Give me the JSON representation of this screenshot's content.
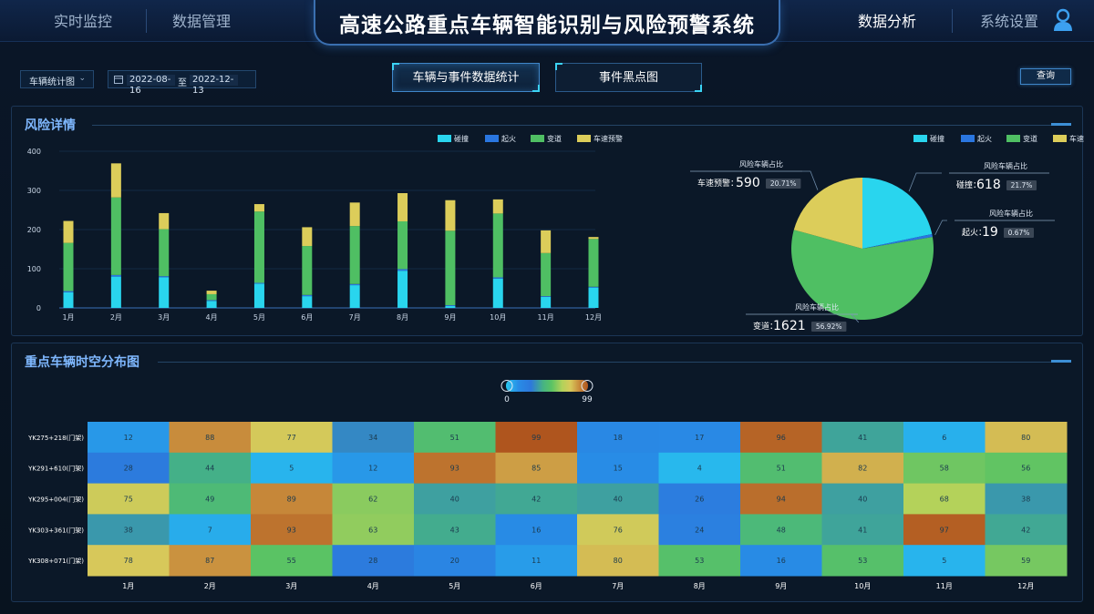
{
  "header": {
    "title": "高速公路重点车辆智能识别与风险预警系统",
    "nav_left": [
      "实时监控",
      "数据管理"
    ],
    "nav_right": [
      "数据分析",
      "系统设置"
    ],
    "active_nav": "数据分析"
  },
  "filters": {
    "chart_type_select": "车辆统计图",
    "date_from": "2022-08-16",
    "date_sep": "至",
    "date_to": "2022-12-13",
    "query_button": "查询"
  },
  "tabs": [
    {
      "label": "车辆与事件数据统计",
      "active": true
    },
    {
      "label": "事件黑点图",
      "active": false
    }
  ],
  "colors": {
    "collision": "#29d5ee",
    "fire": "#2a76e0",
    "lane_change": "#4fbf63",
    "speed_warning": "#dccd5a",
    "accent": "#3c8fd6",
    "panel_title": "#7fb8ff"
  },
  "risk_panel": {
    "title": "风险详情",
    "legend": [
      "碰撞",
      "起火",
      "变道",
      "车速预警"
    ],
    "pie_callout_title": "风险车辆占比",
    "pie_labels": [
      {
        "name": "车速预警",
        "value": "590",
        "pct": "20.71%"
      },
      {
        "name": "碰撞",
        "value": "618",
        "pct": "21.7%"
      },
      {
        "name": "起火",
        "value": "19",
        "pct": "0.67%"
      },
      {
        "name": "变道",
        "value": "1621",
        "pct": "56.92%"
      }
    ]
  },
  "heatmap_panel": {
    "title": "重点车辆时空分布图",
    "scale_min": "0",
    "scale_max": "99"
  },
  "chart_data": [
    {
      "type": "bar",
      "stacked": true,
      "title": "风险详情",
      "categories": [
        "1月",
        "2月",
        "3月",
        "4月",
        "5月",
        "6月",
        "7月",
        "8月",
        "9月",
        "10月",
        "11月",
        "12月"
      ],
      "series": [
        {
          "name": "碰撞",
          "values": [
            40,
            80,
            78,
            18,
            62,
            30,
            58,
            95,
            5,
            75,
            28,
            52
          ]
        },
        {
          "name": "起火",
          "values": [
            3,
            4,
            3,
            2,
            2,
            3,
            3,
            4,
            2,
            3,
            2,
            2
          ]
        },
        {
          "name": "变道",
          "values": [
            123,
            198,
            120,
            15,
            182,
            125,
            148,
            122,
            190,
            163,
            110,
            122
          ]
        },
        {
          "name": "车速预警",
          "values": [
            56,
            87,
            41,
            9,
            19,
            48,
            60,
            72,
            78,
            36,
            58,
            5
          ]
        }
      ],
      "ylim": [
        0,
        400
      ],
      "yticks": [
        0,
        100,
        200,
        300,
        400
      ],
      "legend": "top-right"
    },
    {
      "type": "pie",
      "title": "风险车辆占比",
      "slices": [
        {
          "name": "碰撞",
          "value": 618,
          "pct": 21.7
        },
        {
          "name": "起火",
          "value": 19,
          "pct": 0.67
        },
        {
          "name": "变道",
          "value": 1621,
          "pct": 56.92
        },
        {
          "name": "车速预警",
          "value": 590,
          "pct": 20.71
        }
      ],
      "legend": "top-right"
    },
    {
      "type": "heatmap",
      "title": "重点车辆时空分布图",
      "x": [
        "1月",
        "2月",
        "3月",
        "4月",
        "5月",
        "6月",
        "7月",
        "8月",
        "9月",
        "10月",
        "11月",
        "12月"
      ],
      "y": [
        "YK275+218(门架)",
        "YK291+610(门架)",
        "YK295+004(门架)",
        "YK303+361(门架)",
        "YK308+071(门架)"
      ],
      "values": [
        [
          12,
          88,
          77,
          34,
          51,
          99,
          18,
          17,
          96,
          41,
          6,
          80
        ],
        [
          28,
          44,
          5,
          12,
          93,
          85,
          15,
          4,
          51,
          82,
          58,
          56
        ],
        [
          75,
          49,
          89,
          62,
          40,
          42,
          40,
          26,
          94,
          40,
          68,
          38
        ],
        [
          38,
          7,
          93,
          63,
          43,
          16,
          76,
          24,
          48,
          41,
          97,
          42
        ],
        [
          78,
          87,
          55,
          28,
          20,
          11,
          80,
          53,
          16,
          53,
          5,
          59
        ]
      ],
      "scale": [
        0,
        99
      ]
    }
  ]
}
